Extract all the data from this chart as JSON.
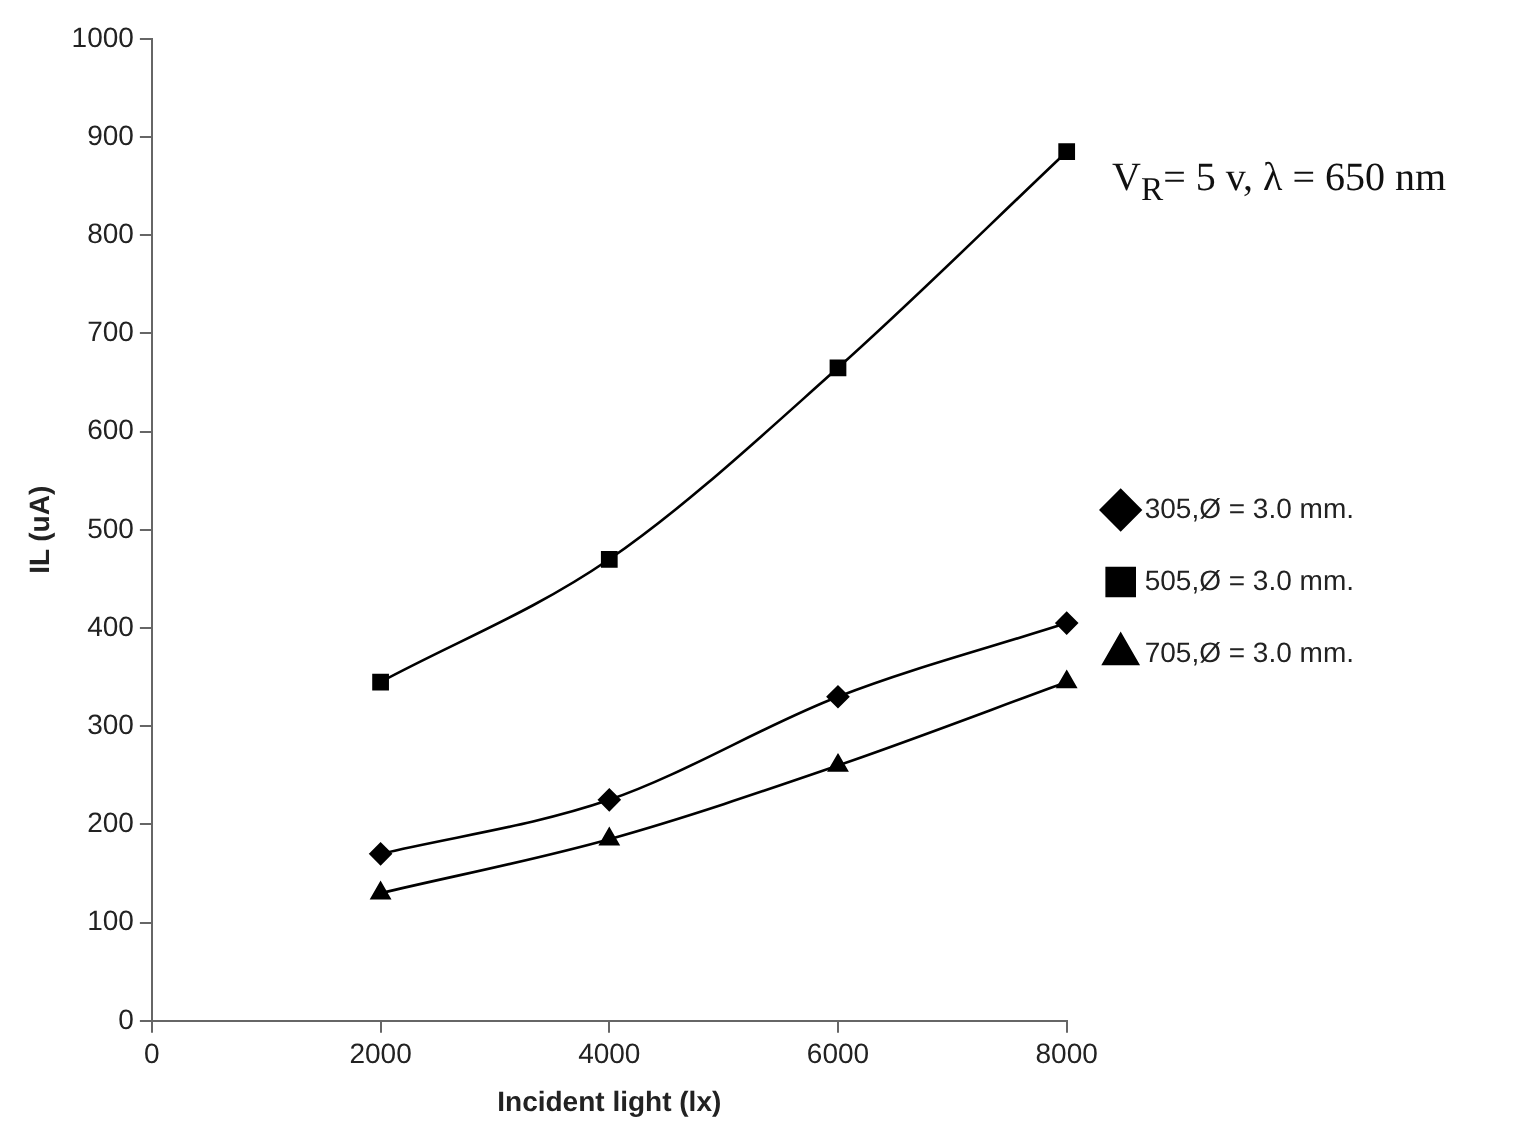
{
  "chart_data": {
    "type": "line",
    "xlabel": "Incident light (lx)",
    "ylabel": "IL (uA)",
    "annotations": [
      "V$_{R}$= 5 v, λ = 650 nm"
    ],
    "x": [
      2000,
      4000,
      6000,
      8000
    ],
    "series": [
      {
        "name": "305,Ø = 3.0 mm.",
        "color": "#000000",
        "marker": "diamond",
        "values": [
          170,
          225,
          330,
          405
        ]
      },
      {
        "name": "505,Ø = 3.0 mm.",
        "color": "#000000",
        "marker": "square",
        "values": [
          345,
          470,
          665,
          885
        ]
      },
      {
        "name": "705,Ø = 3.0 mm.",
        "color": "#000000",
        "marker": "triangle",
        "values": [
          130,
          185,
          260,
          345
        ]
      }
    ],
    "xlim": [
      0,
      8000
    ],
    "xticks": [
      0,
      2000,
      4000,
      6000,
      8000
    ],
    "ylim": [
      0,
      1000
    ],
    "yticks": [
      0,
      100,
      200,
      300,
      400,
      500,
      600,
      700,
      800,
      900,
      1000
    ],
    "grid": false,
    "legend": "right",
    "line_style": "solid"
  }
}
